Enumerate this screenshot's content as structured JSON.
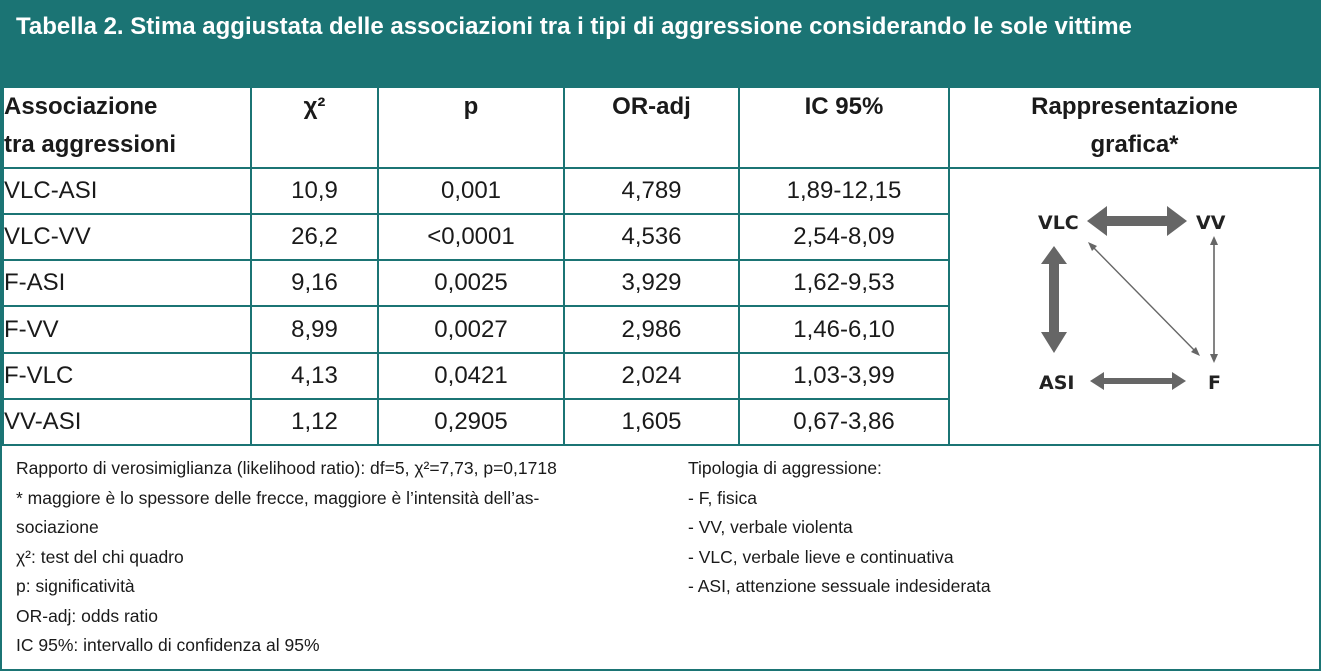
{
  "title": "Tabella 2. Stima aggiustata delle associazioni tra i tipi di aggressione considerando le sole vittime",
  "headers": {
    "col1": [
      "Associazione",
      "tra aggressioni"
    ],
    "chi": "χ²",
    "p": "p",
    "or": "OR-adj",
    "ic": "IC 95%",
    "graph": [
      "Rappresentazione",
      "grafica*"
    ]
  },
  "rows": [
    {
      "assoc": "VLC-ASI",
      "chi": "10,9",
      "p": "0,001",
      "or": "4,789",
      "ic": "1,89-12,15"
    },
    {
      "assoc": "VLC-VV",
      "chi": "26,2",
      "p": "<0,0001",
      "or": "4,536",
      "ic": "2,54-8,09"
    },
    {
      "assoc": "F-ASI",
      "chi": "9,16",
      "p": "0,0025",
      "or": "3,929",
      "ic": "1,62-9,53"
    },
    {
      "assoc": "F-VV",
      "chi": "8,99",
      "p": "0,0027",
      "or": "2,986",
      "ic": "1,46-6,10"
    },
    {
      "assoc": "F-VLC",
      "chi": "4,13",
      "p": "0,0421",
      "or": "2,024",
      "ic": "1,03-3,99"
    },
    {
      "assoc": "VV-ASI",
      "chi": "1,12",
      "p": "0,2905",
      "or": "1,605",
      "ic": "0,67-3,86"
    }
  ],
  "graphic": {
    "nodes": {
      "vlc": "VLC",
      "vv": "VV",
      "asi": "ASI",
      "f": "F"
    },
    "arrow_color": "#666666"
  },
  "notes_left": [
    "Rapporto di verosimiglianza (likelihood ratio): df=5, χ²=7,73, p=0,1718",
    "* maggiore è lo spessore delle frecce, maggiore è l’intensità dell’as-",
    "sociazione",
    "χ²: test del chi quadro",
    "p: significatività",
    "OR-adj: odds ratio",
    "IC 95%: intervallo di confidenza al 95%"
  ],
  "notes_right": [
    "Tipologia di aggressione:",
    "- F, fisica",
    "- VV, verbale violenta",
    "- VLC, verbale lieve e continuativa",
    "- ASI, attenzione sessuale indesiderata"
  ],
  "colors": {
    "teal": "#1b7474",
    "arrow": "#666666"
  }
}
